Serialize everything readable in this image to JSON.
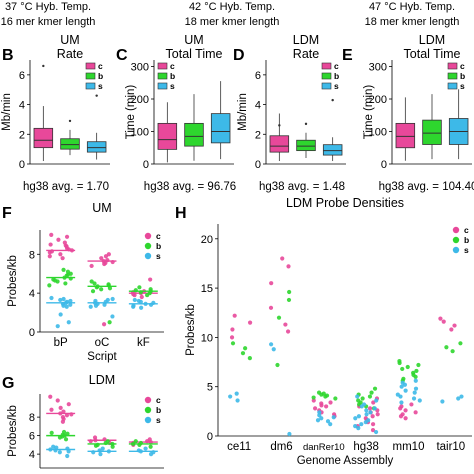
{
  "header_lines": [
    {
      "temp": "37 °C Hyb. Temp.",
      "kmer": "16 mer kmer length"
    },
    {
      "temp": "42 °C Hyb. Temp.",
      "kmer": "18 mer kmer length"
    },
    {
      "temp": "47 °C Hyb. Temp.",
      "kmer": "18 mer kmer length"
    }
  ],
  "colors": {
    "c": "#e8489a",
    "b": "#2ed62e",
    "s": "#3db9e8",
    "outline": "#333333",
    "median_c": "#e8489a",
    "median_b": "#2ed62e",
    "median_s": "#3db9e8"
  },
  "chart_data": [
    {
      "panel": "B",
      "type": "box",
      "title_lines": [
        "UM",
        "Rate"
      ],
      "ylabel": "Mb/min",
      "ylim": [
        0,
        7
      ],
      "yticks": [
        0,
        2,
        4,
        6
      ],
      "legend": [
        "c",
        "b",
        "s"
      ],
      "legend_position": "top-right",
      "footer": "hg38 avg. = 1.70",
      "boxes": [
        {
          "name": "c",
          "q1": 1.1,
          "median": 1.6,
          "q3": 2.4,
          "whisker_low": 0.2,
          "whisker_high": 3.9,
          "outliers": [
            6.6
          ]
        },
        {
          "name": "b",
          "q1": 1.0,
          "median": 1.3,
          "q3": 1.7,
          "whisker_low": 0.6,
          "whisker_high": 2.3,
          "outliers": [
            2.9
          ]
        },
        {
          "name": "s",
          "q1": 0.8,
          "median": 1.1,
          "q3": 1.5,
          "whisker_low": 0.3,
          "whisker_high": 2.1,
          "outliers": [
            4.6
          ]
        }
      ]
    },
    {
      "panel": "C",
      "type": "box",
      "title_lines": [
        "UM",
        "Total Time"
      ],
      "ylabel": "Time (min)",
      "ylim": [
        0,
        320
      ],
      "yticks": [
        0,
        100,
        200,
        300
      ],
      "legend": [
        "c",
        "b",
        "s"
      ],
      "legend_position": "top-left",
      "footer": "hg38 avg. = 96.76",
      "boxes": [
        {
          "name": "c",
          "q1": 45,
          "median": 75,
          "q3": 125,
          "whisker_low": 5,
          "whisker_high": 190,
          "outliers": []
        },
        {
          "name": "b",
          "q1": 55,
          "median": 85,
          "q3": 125,
          "whisker_low": 10,
          "whisker_high": 215,
          "outliers": []
        },
        {
          "name": "s",
          "q1": 65,
          "median": 100,
          "q3": 155,
          "whisker_low": 15,
          "whisker_high": 255,
          "outliers": []
        }
      ]
    },
    {
      "panel": "D",
      "type": "box",
      "title_lines": [
        "LDM",
        "Rate"
      ],
      "ylabel": "Mb/min",
      "ylim": [
        0,
        7
      ],
      "yticks": [
        0,
        2,
        4,
        6
      ],
      "legend": [
        "c",
        "b",
        "s"
      ],
      "legend_position": "top-right",
      "footer": "hg38 avg. = 1.48",
      "boxes": [
        {
          "name": "c",
          "q1": 0.8,
          "median": 1.2,
          "q3": 1.9,
          "whisker_low": 0.2,
          "whisker_high": 3.4,
          "outliers": [
            2.6
          ]
        },
        {
          "name": "b",
          "q1": 0.9,
          "median": 1.2,
          "q3": 1.6,
          "whisker_low": 0.4,
          "whisker_high": 2.1,
          "outliers": [
            2.7
          ]
        },
        {
          "name": "s",
          "q1": 0.6,
          "median": 0.9,
          "q3": 1.3,
          "whisker_low": 0.2,
          "whisker_high": 1.8,
          "outliers": [
            4.3
          ]
        }
      ]
    },
    {
      "panel": "E",
      "type": "box",
      "title_lines": [
        "LDM",
        "Total Time"
      ],
      "ylabel": "Time (min)",
      "ylim": [
        0,
        320
      ],
      "yticks": [
        0,
        100,
        200,
        300
      ],
      "legend": [
        "c",
        "b",
        "s"
      ],
      "legend_position": "top-right",
      "footer": "hg38 avg. = 104.40",
      "boxes": [
        {
          "name": "c",
          "q1": 50,
          "median": 85,
          "q3": 125,
          "whisker_low": 10,
          "whisker_high": 205,
          "outliers": []
        },
        {
          "name": "b",
          "q1": 60,
          "median": 95,
          "q3": 135,
          "whisker_low": 15,
          "whisker_high": 215,
          "outliers": []
        },
        {
          "name": "s",
          "q1": 60,
          "median": 100,
          "q3": 140,
          "whisker_low": 15,
          "whisker_high": 230,
          "outliers": []
        }
      ]
    },
    {
      "panel": "F",
      "type": "scatter",
      "title": "UM",
      "ylabel": "Probes/kb",
      "xlabel": "Script",
      "ylim": [
        0,
        10.5
      ],
      "yticks": [
        0,
        4,
        8
      ],
      "legend": [
        "c",
        "b",
        "s"
      ],
      "legend_position": "top-right",
      "categories": [
        "bP",
        "oC",
        "kF"
      ],
      "groups": [
        {
          "category": "bP",
          "c": [
            7.8,
            8.0,
            8.2,
            8.4,
            8.5,
            8.6,
            8.8,
            9.0,
            9.2,
            9.5,
            9.8,
            10.0,
            7.6,
            8.3,
            8.9
          ],
          "b": [
            5.0,
            5.2,
            5.4,
            5.6,
            5.8,
            6.0,
            6.2,
            5.5,
            5.3,
            5.9,
            4.8,
            6.4
          ],
          "s": [
            2.6,
            2.8,
            3.0,
            3.2,
            3.4,
            2.9,
            3.1,
            3.3,
            2.7,
            3.5,
            1.8,
            1.0,
            0.6
          ]
        },
        {
          "category": "oC",
          "c": [
            6.8,
            7.0,
            7.2,
            7.4,
            7.6,
            7.8,
            8.0,
            7.1,
            7.3,
            0.8
          ],
          "b": [
            4.2,
            4.4,
            4.6,
            4.8,
            5.0,
            5.2,
            4.5,
            4.7,
            4.9,
            1.0
          ],
          "s": [
            2.6,
            2.8,
            3.0,
            3.2,
            3.4,
            2.9,
            3.1,
            3.3,
            2.7,
            1.6
          ]
        },
        {
          "category": "kF",
          "c": [
            3.6,
            3.8,
            4.0,
            4.2,
            5.4,
            3.9,
            4.1
          ],
          "b": [
            3.8,
            4.0,
            4.2,
            4.4,
            4.6,
            4.1,
            4.3
          ],
          "s": [
            2.6,
            2.8,
            3.0,
            3.2,
            2.9,
            3.1,
            2.7,
            2.5,
            3.3
          ]
        }
      ],
      "medians": {
        "bP": {
          "c": 8.4,
          "b": 5.6,
          "s": 3.0
        },
        "oC": {
          "c": 7.3,
          "b": 4.7,
          "s": 3.0
        },
        "kF": {
          "c": 4.0,
          "b": 4.2,
          "s": 2.9
        }
      }
    },
    {
      "panel": "G",
      "type": "scatter",
      "title": "LDM",
      "ylabel": "Probes/kb",
      "ylim": [
        2.5,
        10.5
      ],
      "yticks": [
        4,
        6,
        8
      ],
      "legend": [
        "c",
        "b",
        "s"
      ],
      "legend_position": "top-right",
      "categories": [
        "bP",
        "oC",
        "kF"
      ],
      "groups": [
        {
          "category": "bP",
          "c": [
            7.8,
            8.0,
            8.2,
            8.4,
            8.6,
            8.8,
            9.0,
            9.4,
            9.8,
            10.2,
            7.5,
            8.3
          ],
          "b": [
            5.6,
            5.8,
            6.0,
            6.2,
            6.4,
            5.9,
            6.1,
            6.3
          ],
          "s": [
            4.2,
            4.4,
            4.6,
            4.8,
            4.5,
            4.3,
            4.7,
            3.8
          ]
        },
        {
          "category": "oC",
          "c": [
            5.2,
            5.4,
            5.6,
            5.8,
            5.5
          ],
          "b": [
            4.8,
            5.0,
            5.2,
            5.4,
            4.9,
            5.1
          ],
          "s": [
            4.0,
            4.2,
            4.4,
            4.6,
            4.3
          ]
        },
        {
          "category": "kF",
          "c": [
            5.0,
            5.2,
            5.4,
            5.6,
            5.3
          ],
          "b": [
            4.8,
            5.0,
            5.2,
            5.4,
            5.1
          ],
          "s": [
            4.0,
            4.2,
            4.4,
            4.6,
            4.3
          ]
        }
      ],
      "medians": {
        "bP": {
          "c": 8.4,
          "b": 6.0,
          "s": 4.5
        },
        "oC": {
          "c": 5.5,
          "b": 5.1,
          "s": 4.3
        },
        "kF": {
          "c": 5.3,
          "b": 5.1,
          "s": 4.3
        }
      }
    },
    {
      "panel": "H",
      "type": "scatter",
      "title": "LDM Probe Densities",
      "ylabel": "Probes/kb",
      "xlabel": "Genome Assembly",
      "ylim": [
        0,
        21.5
      ],
      "yticks": [
        0,
        5,
        10,
        15,
        20
      ],
      "legend": [
        "c",
        "b",
        "s"
      ],
      "legend_position": "top-right",
      "categories": [
        "ce11",
        "dm6",
        "danRer10",
        "hg38",
        "mm10",
        "tair10"
      ],
      "groups": [
        {
          "category": "ce11",
          "c": [
            10.0,
            10.8,
            11.5,
            12.2
          ],
          "b": [
            8.4,
            8.9,
            9.4,
            7.9
          ],
          "s": [
            3.6,
            4.0,
            4.3
          ]
        },
        {
          "category": "dm6",
          "c": [
            18.0,
            17.2,
            15.5,
            13.0,
            11.3,
            10.6
          ],
          "b": [
            14.6,
            13.8,
            7.2,
            12.0
          ],
          "s": [
            8.8,
            9.3,
            0.2
          ]
        },
        {
          "category": "danRer10",
          "c": [
            2.2,
            2.6,
            3.0,
            3.3,
            3.6,
            2.4,
            2.8,
            3.1,
            3.4,
            2.0
          ],
          "b": [
            3.8,
            4.0,
            4.2,
            4.4,
            3.9,
            4.1,
            4.3
          ],
          "s": [
            1.2,
            1.5,
            1.8,
            2.1,
            2.4,
            1.6,
            1.9
          ]
        },
        {
          "category": "hg38",
          "c": [
            0.6,
            1.0,
            1.4,
            1.8,
            2.2,
            2.6,
            3.0,
            3.4,
            3.8,
            1.2,
            1.6,
            2.0,
            2.4,
            2.8
          ],
          "b": [
            2.8,
            3.2,
            3.6,
            4.0,
            4.4,
            4.8,
            3.0,
            3.4,
            3.8,
            4.2
          ],
          "s": [
            0.4,
            0.8,
            1.2,
            1.6,
            2.0,
            2.4,
            2.8,
            3.2,
            3.6,
            4.0,
            1.0,
            1.4,
            1.8,
            2.2,
            2.6,
            3.0
          ]
        },
        {
          "category": "mm10",
          "c": [
            2.0,
            2.4,
            2.8,
            3.2,
            2.2,
            2.6,
            3.0,
            1.8
          ],
          "b": [
            5.6,
            6.0,
            6.4,
            6.8,
            7.2,
            7.6,
            5.8,
            6.2,
            6.6,
            7.0,
            7.4
          ],
          "s": [
            3.6,
            4.0,
            4.4,
            4.8,
            5.2,
            5.6,
            3.8,
            4.2,
            4.6,
            5.0,
            5.4,
            3.4
          ]
        },
        {
          "category": "tair10",
          "c": [
            10.8,
            11.2,
            11.6,
            11.9
          ],
          "b": [
            8.6,
            9.0,
            9.4
          ],
          "s": [
            3.5,
            3.8,
            4.0
          ]
        }
      ]
    }
  ]
}
